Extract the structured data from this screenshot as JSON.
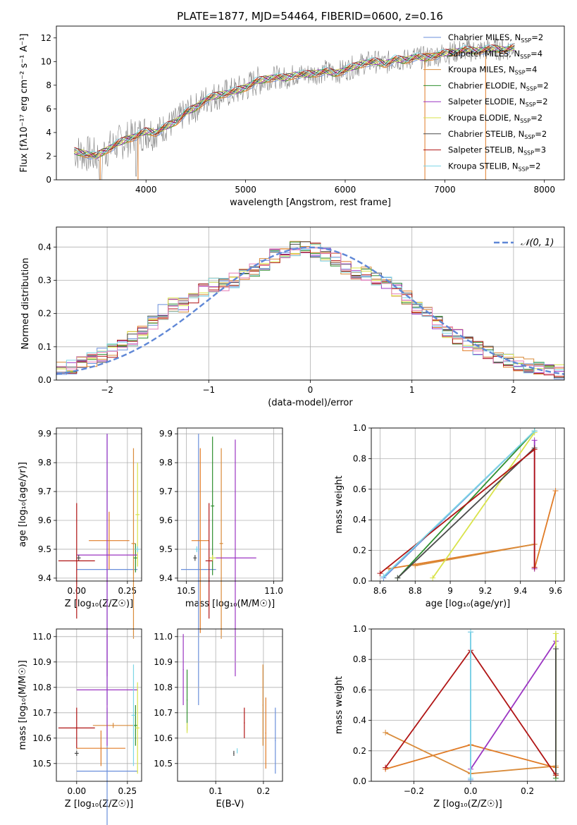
{
  "figure_title": "PLATE=1877, MJD=54464, FIBERID=0600, z=0.16",
  "series_colors": [
    "#6a8fdb",
    "#e07b26",
    "#d98b3a",
    "#2f8f2f",
    "#9b35c2",
    "#d9e34a",
    "#4a4a4a",
    "#b01515",
    "#7dd6e6"
  ],
  "legend_extra": {
    "ref_color": "#5f87d6",
    "spectrum_color": "#808080",
    "pink": "#e57fb6"
  },
  "chart_data": [
    {
      "type": "line",
      "title": "PLATE=1877, MJD=54464, FIBERID=0600, z=0.16",
      "xlabel": "wavelength [Angstrom, rest frame]",
      "ylabel": "Flux [fλ10⁻¹⁷ erg cm⁻² s⁻¹ A⁻¹]",
      "xlim": [
        3100,
        8200
      ],
      "ylim": [
        0,
        13
      ],
      "xticks": [
        4000,
        5000,
        6000,
        7000,
        8000
      ],
      "yticks": [
        0,
        2,
        4,
        6,
        8,
        10,
        12
      ],
      "grid": false,
      "legend_placement": "top-right",
      "legend": [
        "Chabrier MILES, NSSP=2",
        "Salpeter MILES, NSSP=4",
        "Kroupa MILES, NSSP=4",
        "Chabrier ELODIE, NSSP=2",
        "Salpeter ELODIE, NSSP=2",
        "Kroupa ELODIE, NSSP=2",
        "Chabrier STELIB, NSSP=2",
        "Salpeter STELIB, NSSP=3",
        "Kroupa STELIB, NSSP=2"
      ],
      "model_x": [
        3280,
        3400,
        3500,
        3600,
        3700,
        3800,
        3900,
        4000,
        4100,
        4200,
        4300,
        4400,
        4500,
        4600,
        4700,
        4800,
        4900,
        5000,
        5100,
        5200,
        5300,
        5400,
        5500,
        5600,
        5700,
        5800,
        5900,
        6000,
        6100,
        6200,
        6300,
        6400,
        6500,
        6600,
        6700,
        6800,
        6900,
        7000,
        7100,
        7200,
        7300,
        7400,
        7500,
        7600,
        7700
      ],
      "model_y": [
        2.4,
        2.2,
        2.0,
        2.5,
        3.0,
        3.4,
        3.7,
        4.1,
        4.0,
        4.5,
        4.9,
        5.7,
        6.1,
        6.8,
        7.1,
        7.3,
        7.5,
        7.8,
        8.3,
        8.5,
        8.7,
        8.6,
        8.9,
        8.9,
        9.0,
        9.2,
        9.0,
        9.3,
        9.6,
        9.9,
        10.0,
        9.8,
        10.2,
        10.1,
        10.4,
        10.3,
        10.5,
        10.7,
        10.8,
        11.0,
        10.9,
        11.0,
        11.1,
        11.0,
        11.2
      ]
    },
    {
      "type": "line",
      "xlabel": "(data-model)/error",
      "ylabel": "Normed distribution",
      "xlim": [
        -2.5,
        2.5
      ],
      "ylim": [
        0,
        0.46
      ],
      "xticks": [
        -2,
        -1,
        0,
        1,
        2
      ],
      "yticks": [
        0.0,
        0.1,
        0.2,
        0.3,
        0.4
      ],
      "grid": true,
      "legend_placement": "top-right",
      "legend": [
        "𝒩(0, 1)"
      ],
      "hist_x": [
        -2.5,
        -2.4,
        -2.3,
        -2.2,
        -2.1,
        -2.0,
        -1.9,
        -1.8,
        -1.7,
        -1.6,
        -1.5,
        -1.4,
        -1.3,
        -1.2,
        -1.1,
        -1.0,
        -0.9,
        -0.8,
        -0.7,
        -0.6,
        -0.5,
        -0.4,
        -0.3,
        -0.2,
        -0.1,
        0.0,
        0.1,
        0.2,
        0.3,
        0.4,
        0.5,
        0.6,
        0.7,
        0.8,
        0.9,
        1.0,
        1.1,
        1.2,
        1.3,
        1.4,
        1.5,
        1.6,
        1.7,
        1.8,
        1.9,
        2.0,
        2.1,
        2.2,
        2.3,
        2.4
      ],
      "hist_y": [
        0.033,
        0.04,
        0.05,
        0.06,
        0.075,
        0.09,
        0.105,
        0.125,
        0.145,
        0.175,
        0.205,
        0.225,
        0.225,
        0.24,
        0.27,
        0.285,
        0.29,
        0.3,
        0.315,
        0.33,
        0.35,
        0.375,
        0.39,
        0.395,
        0.405,
        0.39,
        0.38,
        0.365,
        0.34,
        0.325,
        0.32,
        0.3,
        0.29,
        0.27,
        0.25,
        0.22,
        0.2,
        0.17,
        0.15,
        0.13,
        0.11,
        0.095,
        0.08,
        0.068,
        0.058,
        0.05,
        0.043,
        0.036,
        0.03,
        0.025
      ]
    },
    {
      "type": "scatter",
      "xlabel": "Z [log₁₀(Z/Z☉)]",
      "ylabel": "age  [log₁₀(age/yr)]",
      "xlim": [
        -0.1,
        0.32
      ],
      "ylim": [
        9.39,
        9.92
      ],
      "xticks": [
        0.0,
        0.25
      ],
      "yticks": [
        9.4,
        9.5,
        9.6,
        9.7,
        9.8,
        9.9
      ],
      "grid": true,
      "points": [
        {
          "x": 0.15,
          "y": 9.43,
          "xerr": 0.15,
          "yerr": 0.47
        },
        {
          "x": 0.16,
          "y": 9.53,
          "xerr": 0.1,
          "yerr": 0.1
        },
        {
          "x": 0.28,
          "y": 9.52,
          "xerr": 0.01,
          "yerr": 0.33
        },
        {
          "x": 0.29,
          "y": 9.47,
          "xerr": 0.01,
          "yerr": 0.05
        },
        {
          "x": 0.15,
          "y": 9.48,
          "xerr": 0.15,
          "yerr": 0.42
        },
        {
          "x": 0.3,
          "y": 9.62,
          "xerr": 0.01,
          "yerr": 0.18
        },
        {
          "x": 0.01,
          "y": 9.47,
          "xerr": 0.01,
          "yerr": 0.01
        },
        {
          "x": 0.0,
          "y": 9.46,
          "xerr": 0.09,
          "yerr": 0.2
        },
        {
          "x": 0.3,
          "y": 9.5,
          "xerr": 0.01,
          "yerr": 0.01
        }
      ]
    },
    {
      "type": "scatter",
      "xlabel": "mass [log₁₀(M/M☉)]",
      "ylabel": "",
      "xlim": [
        10.45,
        11.05
      ],
      "ylim": [
        9.39,
        9.92
      ],
      "xticks": [
        10.5,
        11.0
      ],
      "yticks": [
        9.4,
        9.5,
        9.6,
        9.7,
        9.8,
        9.9
      ],
      "grid": true,
      "points": [
        {
          "x": 10.57,
          "y": 9.43,
          "xerr": 0.1,
          "yerr": 0.47
        },
        {
          "x": 10.58,
          "y": 9.53,
          "xerr": 0.05,
          "yerr": 0.32
        },
        {
          "x": 10.7,
          "y": 9.52,
          "xerr": 0.01,
          "yerr": 0.33
        },
        {
          "x": 10.65,
          "y": 9.65,
          "xerr": 0.01,
          "yerr": 0.24
        },
        {
          "x": 10.78,
          "y": 9.47,
          "xerr": 0.12,
          "yerr": 0.41
        },
        {
          "x": 10.65,
          "y": 9.47,
          "xerr": 0.02,
          "yerr": 0.01
        },
        {
          "x": 10.55,
          "y": 9.47,
          "xerr": 0.01,
          "yerr": 0.01
        },
        {
          "x": 10.63,
          "y": 9.46,
          "xerr": 0.02,
          "yerr": 0.2
        },
        {
          "x": 10.56,
          "y": 9.5,
          "xerr": 0.01,
          "yerr": 0.01
        }
      ]
    },
    {
      "type": "line",
      "xlabel": "age  [log₁₀(age/yr)]",
      "ylabel": "mass weight",
      "xlim": [
        8.55,
        9.65
      ],
      "ylim": [
        0,
        1.0
      ],
      "xticks": [
        8.6,
        8.8,
        9.0,
        9.2,
        9.4,
        9.6
      ],
      "yticks": [
        0.0,
        0.2,
        0.4,
        0.6,
        0.8,
        1.0
      ],
      "grid": true,
      "series": [
        {
          "x": [
            8.62,
            9.48
          ],
          "y": [
            0.02,
            0.98
          ]
        },
        {
          "x": [
            8.65,
            9.48,
            9.48,
            9.6
          ],
          "y": [
            0.08,
            0.24,
            0.08,
            0.59
          ]
        },
        {
          "x": [
            8.8,
            9.48
          ],
          "y": [
            0.1,
            0.24
          ]
        },
        {
          "x": [
            8.7,
            9.48
          ],
          "y": [
            0.02,
            0.98
          ]
        },
        {
          "x": [
            9.48,
            9.48
          ],
          "y": [
            0.08,
            0.92
          ]
        },
        {
          "x": [
            8.9,
            9.48
          ],
          "y": [
            0.02,
            0.97
          ]
        },
        {
          "x": [
            8.7,
            9.48
          ],
          "y": [
            0.02,
            0.87
          ]
        },
        {
          "x": [
            8.6,
            9.48,
            9.48
          ],
          "y": [
            0.05,
            0.86,
            0.09
          ]
        },
        {
          "x": [
            8.62,
            9.48
          ],
          "y": [
            0.03,
            0.98
          ]
        }
      ]
    },
    {
      "type": "scatter",
      "xlabel": "Z [log₁₀(Z/Z☉)]",
      "ylabel": "mass [log₁₀(M/M☉)]",
      "xlim": [
        -0.1,
        0.32
      ],
      "ylim": [
        10.43,
        11.03
      ],
      "xticks": [
        0.0,
        0.25
      ],
      "yticks": [
        10.5,
        10.6,
        10.7,
        10.8,
        10.9,
        11.0
      ],
      "grid": true,
      "points": [
        {
          "x": 0.15,
          "y": 10.47,
          "xerr": 0.15,
          "yerr": 0.25
        },
        {
          "x": 0.12,
          "y": 10.56,
          "xerr": 0.12,
          "yerr": 0.07
        },
        {
          "x": 0.18,
          "y": 10.65,
          "xerr": 0.1,
          "yerr": 0.01
        },
        {
          "x": 0.29,
          "y": 10.65,
          "xerr": 0.01,
          "yerr": 0.08
        },
        {
          "x": 0.15,
          "y": 10.79,
          "xerr": 0.15,
          "yerr": 0.22
        },
        {
          "x": 0.3,
          "y": 10.64,
          "xerr": 0.01,
          "yerr": 0.18
        },
        {
          "x": 0.0,
          "y": 10.54,
          "xerr": 0.01,
          "yerr": 0.01
        },
        {
          "x": 0.0,
          "y": 10.64,
          "xerr": 0.09,
          "yerr": 0.08
        },
        {
          "x": 0.28,
          "y": 10.69,
          "xerr": 0.01,
          "yerr": 0.2
        }
      ]
    },
    {
      "type": "scatter",
      "xlabel": "E(B-V)",
      "ylabel": "",
      "xlim": [
        0.02,
        0.24
      ],
      "ylim": [
        10.43,
        11.03
      ],
      "xticks": [
        0.1,
        0.2
      ],
      "yticks": [
        10.5,
        10.6,
        10.7,
        10.8,
        10.9,
        11.0
      ],
      "grid": true,
      "points": [
        {
          "x": 0.225,
          "y": 10.59,
          "xerr": 0.001,
          "yerr": 0.13
        },
        {
          "x": 0.205,
          "y": 10.62,
          "xerr": 0.001,
          "yerr": 0.14
        },
        {
          "x": 0.199,
          "y": 10.73,
          "xerr": 0.001,
          "yerr": 0.16
        },
        {
          "x": 0.04,
          "y": 10.75,
          "xerr": 0.001,
          "yerr": 0.12
        },
        {
          "x": 0.032,
          "y": 10.87,
          "xerr": 0.001,
          "yerr": 0.14
        },
        {
          "x": 0.04,
          "y": 10.64,
          "xerr": 0.001,
          "yerr": 0.02
        },
        {
          "x": 0.138,
          "y": 10.54,
          "xerr": 0.001,
          "yerr": 0.01
        },
        {
          "x": 0.16,
          "y": 10.66,
          "xerr": 0.001,
          "yerr": 0.06
        },
        {
          "x": 0.145,
          "y": 10.55,
          "xerr": 0.001,
          "yerr": 0.01
        }
      ]
    },
    {
      "type": "line",
      "xlabel": "Z [log₁₀(Z/Z☉)]",
      "ylabel": "mass weight",
      "xlim": [
        -0.35,
        0.33
      ],
      "ylim": [
        0,
        1.0
      ],
      "xticks": [
        -0.2,
        0.0,
        0.2
      ],
      "yticks": [
        0.0,
        0.2,
        0.4,
        0.6,
        0.8,
        1.0
      ],
      "grid": true,
      "series": [
        {
          "x": [
            0.0,
            0.0
          ],
          "y": [
            0.01,
            0.98
          ]
        },
        {
          "x": [
            -0.3,
            0.0,
            0.3
          ],
          "y": [
            0.08,
            0.24,
            0.09
          ]
        },
        {
          "x": [
            -0.3,
            0.0,
            0.3
          ],
          "y": [
            0.32,
            0.05,
            0.1
          ]
        },
        {
          "x": [
            0.3,
            0.3
          ],
          "y": [
            0.02,
            0.97
          ]
        },
        {
          "x": [
            0.0,
            0.3
          ],
          "y": [
            0.08,
            0.92
          ]
        },
        {
          "x": [
            0.3,
            0.3
          ],
          "y": [
            0.04,
            0.97
          ]
        },
        {
          "x": [
            0.3,
            0.3
          ],
          "y": [
            0.05,
            0.87
          ]
        },
        {
          "x": [
            -0.3,
            0.0,
            0.3
          ],
          "y": [
            0.09,
            0.86,
            0.04
          ]
        },
        {
          "x": [
            0.0,
            0.0
          ],
          "y": [
            0.02,
            0.98
          ]
        }
      ]
    }
  ]
}
